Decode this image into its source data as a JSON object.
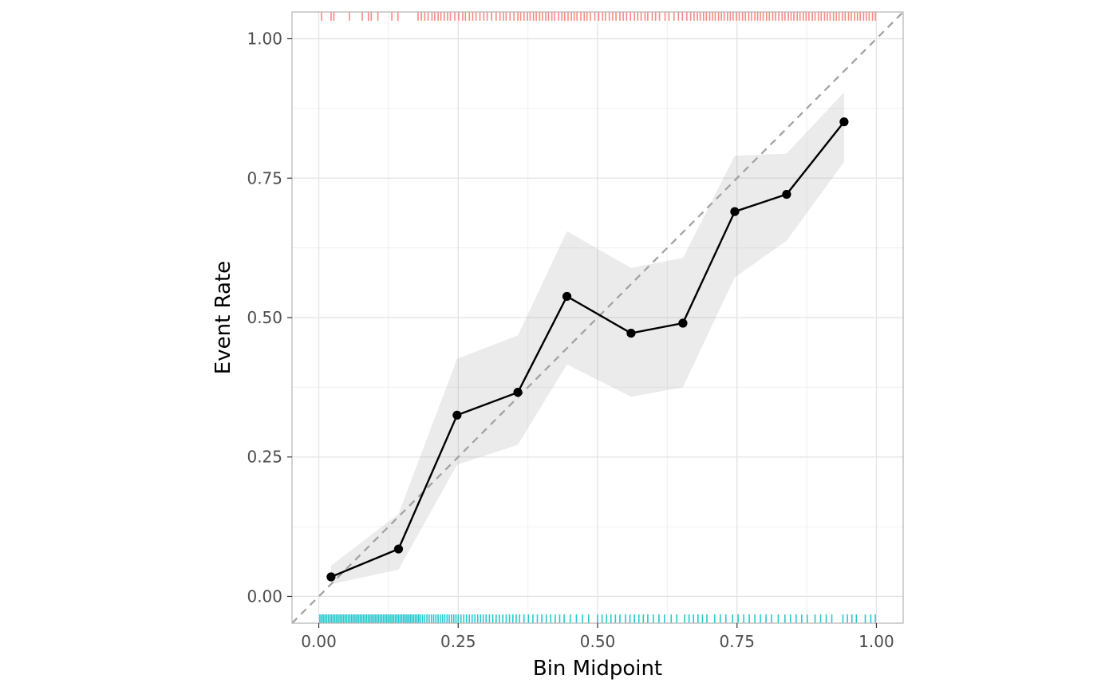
{
  "chart_data": {
    "type": "line",
    "title": "",
    "xlabel": "Bin Midpoint",
    "ylabel": "Event Rate",
    "xlim": [
      -0.048,
      1.048
    ],
    "ylim": [
      -0.048,
      1.048
    ],
    "x_ticks": [
      0.0,
      0.25,
      0.5,
      0.75,
      1.0
    ],
    "x_tick_labels": [
      "0.00",
      "0.25",
      "0.50",
      "0.75",
      "1.00"
    ],
    "y_ticks": [
      0.0,
      0.25,
      0.5,
      0.75,
      1.0
    ],
    "y_tick_labels": [
      "0.00",
      "0.25",
      "0.50",
      "0.75",
      "1.00"
    ],
    "grid": true,
    "reference_line": {
      "x": [
        -0.048,
        1.048
      ],
      "y": [
        -0.048,
        1.048
      ],
      "style": "dashed",
      "color": "#a0a0a0"
    },
    "series": [
      {
        "x": [
          0.022,
          0.143,
          0.248,
          0.357,
          0.445,
          0.56,
          0.653,
          0.746,
          0.839,
          0.942
        ],
        "y": [
          0.035,
          0.085,
          0.325,
          0.366,
          0.538,
          0.472,
          0.49,
          0.69,
          0.721,
          0.851
        ],
        "ci_lower": [
          0.022,
          0.048,
          0.236,
          0.272,
          0.416,
          0.358,
          0.375,
          0.572,
          0.638,
          0.779
        ],
        "ci_upper": [
          0.055,
          0.148,
          0.426,
          0.468,
          0.655,
          0.589,
          0.607,
          0.79,
          0.794,
          0.904
        ]
      }
    ],
    "rug": {
      "top_color": "#f8766d",
      "bottom_color": "#00bfc4",
      "top": [
        0.005,
        0.022,
        0.027,
        0.055,
        0.078,
        0.089,
        0.094,
        0.106,
        0.131,
        0.142,
        0.178,
        0.184,
        0.19,
        0.196,
        0.203,
        0.208,
        0.214,
        0.219,
        0.225,
        0.231,
        0.236,
        0.244,
        0.251,
        0.258,
        0.263,
        0.27,
        0.276,
        0.282,
        0.289,
        0.296,
        0.302,
        0.31,
        0.318,
        0.325,
        0.331,
        0.336,
        0.343,
        0.35,
        0.357,
        0.362,
        0.368,
        0.374,
        0.379,
        0.385,
        0.39,
        0.396,
        0.401,
        0.407,
        0.412,
        0.418,
        0.423,
        0.43,
        0.436,
        0.441,
        0.447,
        0.453,
        0.458,
        0.463,
        0.47,
        0.476,
        0.481,
        0.487,
        0.495,
        0.502,
        0.509,
        0.514,
        0.521,
        0.527,
        0.533,
        0.54,
        0.546,
        0.552,
        0.559,
        0.566,
        0.572,
        0.578,
        0.585,
        0.59,
        0.598,
        0.604,
        0.611,
        0.621,
        0.628,
        0.637,
        0.645,
        0.652,
        0.66,
        0.667,
        0.673,
        0.679,
        0.684,
        0.69,
        0.695,
        0.701,
        0.706,
        0.711,
        0.717,
        0.722,
        0.727,
        0.733,
        0.738,
        0.743,
        0.749,
        0.754,
        0.76,
        0.765,
        0.771,
        0.776,
        0.782,
        0.787,
        0.792,
        0.797,
        0.803,
        0.808,
        0.814,
        0.819,
        0.825,
        0.831,
        0.836,
        0.842,
        0.847,
        0.852,
        0.858,
        0.863,
        0.869,
        0.874,
        0.879,
        0.885,
        0.89,
        0.896,
        0.901,
        0.907,
        0.912,
        0.917,
        0.923,
        0.928,
        0.933,
        0.939,
        0.944,
        0.95,
        0.955,
        0.961,
        0.966,
        0.971,
        0.977,
        0.982,
        0.987,
        0.993,
        0.998
      ],
      "bottom": [
        0.002,
        0.005,
        0.008,
        0.011,
        0.014,
        0.017,
        0.02,
        0.023,
        0.026,
        0.029,
        0.032,
        0.035,
        0.038,
        0.041,
        0.044,
        0.047,
        0.05,
        0.053,
        0.056,
        0.059,
        0.062,
        0.065,
        0.068,
        0.071,
        0.074,
        0.077,
        0.08,
        0.083,
        0.086,
        0.089,
        0.092,
        0.095,
        0.098,
        0.101,
        0.104,
        0.107,
        0.11,
        0.113,
        0.116,
        0.119,
        0.122,
        0.125,
        0.128,
        0.131,
        0.134,
        0.137,
        0.14,
        0.143,
        0.146,
        0.149,
        0.152,
        0.155,
        0.158,
        0.161,
        0.164,
        0.167,
        0.17,
        0.173,
        0.176,
        0.179,
        0.182,
        0.186,
        0.19,
        0.194,
        0.198,
        0.202,
        0.206,
        0.21,
        0.214,
        0.218,
        0.222,
        0.226,
        0.23,
        0.234,
        0.238,
        0.242,
        0.246,
        0.25,
        0.255,
        0.26,
        0.265,
        0.27,
        0.275,
        0.28,
        0.285,
        0.29,
        0.295,
        0.3,
        0.306,
        0.312,
        0.318,
        0.324,
        0.33,
        0.336,
        0.342,
        0.348,
        0.354,
        0.36,
        0.368,
        0.376,
        0.384,
        0.392,
        0.4,
        0.408,
        0.416,
        0.424,
        0.432,
        0.44,
        0.451,
        0.462,
        0.473,
        0.484,
        0.5,
        0.508,
        0.516,
        0.524,
        0.532,
        0.54,
        0.55,
        0.558,
        0.566,
        0.574,
        0.582,
        0.59,
        0.6,
        0.61,
        0.62,
        0.632,
        0.642,
        0.656,
        0.664,
        0.672,
        0.68,
        0.688,
        0.696,
        0.71,
        0.72,
        0.73,
        0.742,
        0.752,
        0.762,
        0.772,
        0.782,
        0.792,
        0.802,
        0.812,
        0.824,
        0.836,
        0.846,
        0.856,
        0.866,
        0.876,
        0.89,
        0.9,
        0.91,
        0.92,
        0.94,
        0.948,
        0.956,
        0.964,
        0.98,
        0.99,
        0.998
      ]
    }
  }
}
